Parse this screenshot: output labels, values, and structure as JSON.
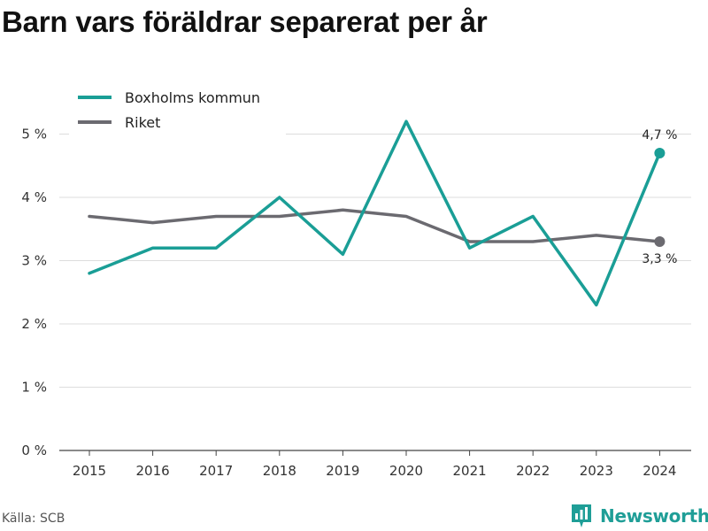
{
  "title": "Barn vars föräldrar separerat per år",
  "source": "Källa: SCB",
  "brand": "Newsworthy",
  "chart_data": {
    "type": "line",
    "title": "Barn vars föräldrar separerat per år",
    "x": [
      "2015",
      "2016",
      "2017",
      "2018",
      "2019",
      "2020",
      "2021",
      "2022",
      "2023",
      "2024"
    ],
    "y_ticks": [
      "0 %",
      "1 %",
      "2 %",
      "3 %",
      "4 %",
      "5 %"
    ],
    "ylim": [
      0,
      5.5
    ],
    "grid": true,
    "legend_position": "top-left",
    "series": [
      {
        "name": "Boxholms kommun",
        "color": "#1a9e96",
        "values": [
          2.8,
          3.2,
          3.2,
          4.0,
          3.1,
          5.2,
          3.2,
          3.7,
          2.3,
          4.7
        ],
        "end_label": "4,7 %"
      },
      {
        "name": "Riket",
        "color": "#6b6a70",
        "values": [
          3.7,
          3.6,
          3.7,
          3.7,
          3.8,
          3.7,
          3.3,
          3.3,
          3.4,
          3.3
        ],
        "end_label": "3,3 %"
      }
    ]
  }
}
